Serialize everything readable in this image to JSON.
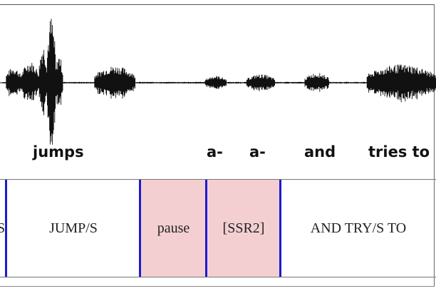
{
  "words": {
    "jumps": "jumps",
    "a1": "a-",
    "a2": "a-",
    "and": "and",
    "tries_to": "tries to"
  },
  "segments": {
    "left_cut": "S",
    "jump": "JUMP/S",
    "pause": "pause",
    "ssr2": "[SSR2]",
    "and_try": "AND TRY/S TO"
  },
  "colors": {
    "boundary": "#1b1bd0",
    "highlight": "#f4cfd2",
    "waveform": "#111111"
  }
}
